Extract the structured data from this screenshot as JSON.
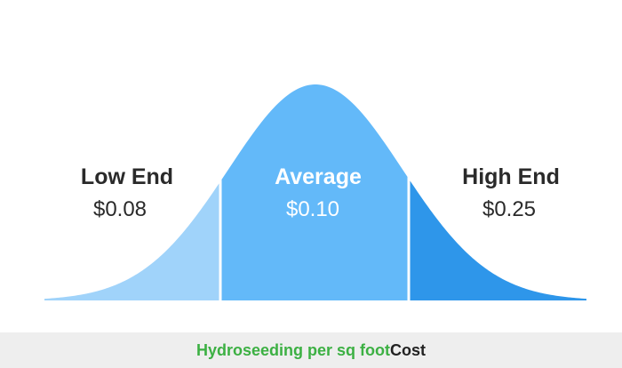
{
  "chart_data": {
    "type": "area",
    "segments": [
      {
        "label": "Low End",
        "value": "$0.08",
        "color": "#a0d3fa",
        "text_color": "#2a2a2a"
      },
      {
        "label": "Average",
        "value": "$0.10",
        "color": "#63b9f9",
        "text_color": "#ffffff"
      },
      {
        "label": "High End",
        "value": "$0.25",
        "color": "#2e96ea",
        "text_color": "#2a2a2a"
      }
    ],
    "divider_color": "#ffffff"
  },
  "footer": {
    "highlight": "Hydroseeding per sq foot",
    "suffix": "Cost",
    "highlight_color": "#3cb043",
    "suffix_color": "#222222"
  }
}
